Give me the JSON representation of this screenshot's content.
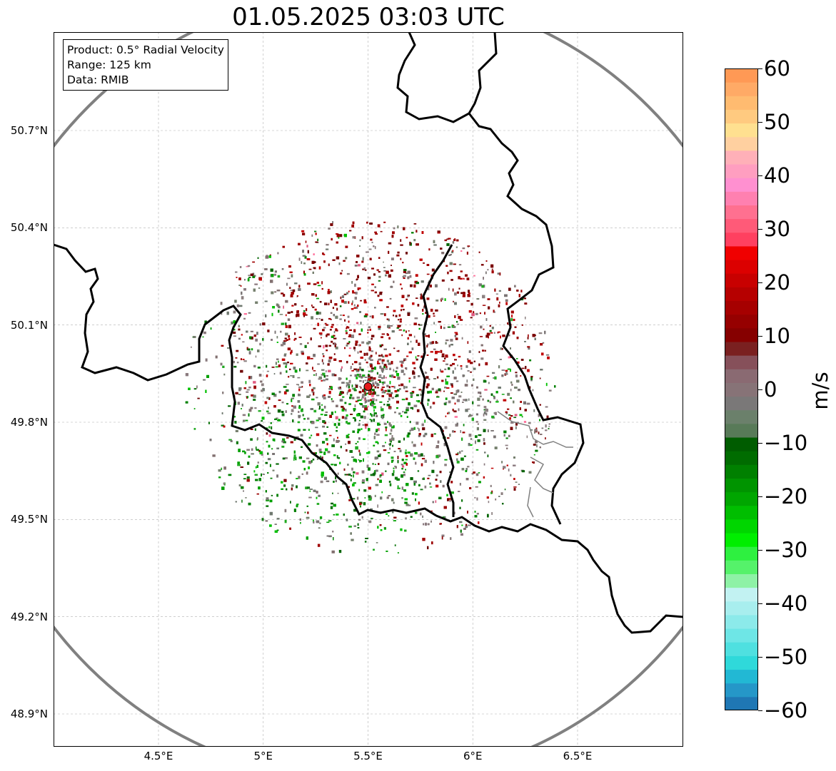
{
  "title": "01.05.2025 03:03 UTC",
  "info": {
    "product": "Product: 0.5° Radial Velocity",
    "range": "Range: 125 km",
    "source": "Data: RMIB"
  },
  "axes": {
    "lat_labels": [
      "50.7°N",
      "50.4°N",
      "50.1°N",
      "49.8°N",
      "49.5°N",
      "49.2°N",
      "48.9°N"
    ],
    "lat_values": [
      50.7,
      50.4,
      50.1,
      49.8,
      49.5,
      49.2,
      48.9
    ],
    "lon_labels": [
      "4.5°E",
      "5°E",
      "5.5°E",
      "6°E",
      "6.5°E"
    ],
    "lon_values": [
      4.5,
      5.0,
      5.5,
      6.0,
      6.5
    ],
    "lat_range": [
      48.8,
      51.0
    ],
    "lon_range": [
      4.0,
      7.0
    ]
  },
  "radar_site": {
    "lat": 49.91,
    "lon": 5.5,
    "color": "#e41a1c"
  },
  "colorbar": {
    "unit": "m/s",
    "min": -60,
    "max": 60,
    "tick_values": [
      60,
      50,
      40,
      30,
      20,
      10,
      0,
      -10,
      -20,
      -30,
      -40,
      -50,
      -60
    ],
    "tick_labels": [
      "60",
      "50",
      "40",
      "30",
      "20",
      "10",
      "0",
      "−10",
      "−20",
      "−30",
      "−40",
      "−50",
      "−60"
    ],
    "colors": [
      "#1f77b4",
      "#2597c8",
      "#22b8d4",
      "#2fd9da",
      "#4fe0e0",
      "#6ee6e6",
      "#8ceaea",
      "#a8eeee",
      "#c2f2f2",
      "#8ef2a6",
      "#55f26a",
      "#2ef040",
      "#00ee00",
      "#00d600",
      "#00be00",
      "#00a600",
      "#009400",
      "#008000",
      "#006c00",
      "#005c00",
      "#587a58",
      "#6b806b",
      "#7a7878",
      "#877377",
      "#8a6a72",
      "#86505a",
      "#7a2020",
      "#860000",
      "#960000",
      "#a60000",
      "#b60000",
      "#c80000",
      "#dc0000",
      "#f00000",
      "#ff4060",
      "#ff5a78",
      "#ff7090",
      "#ff80b0",
      "#ff90d0",
      "#ff9ec0",
      "#ffb0b8",
      "#ffd0a0",
      "#ffe090",
      "#ffca80",
      "#ffbb70",
      "#ffaa66",
      "#ff9955"
    ]
  },
  "colors": {
    "range_ring": "#808080",
    "border": "#000000",
    "inner_border": "#808080",
    "grid": "#b0b0b0"
  }
}
